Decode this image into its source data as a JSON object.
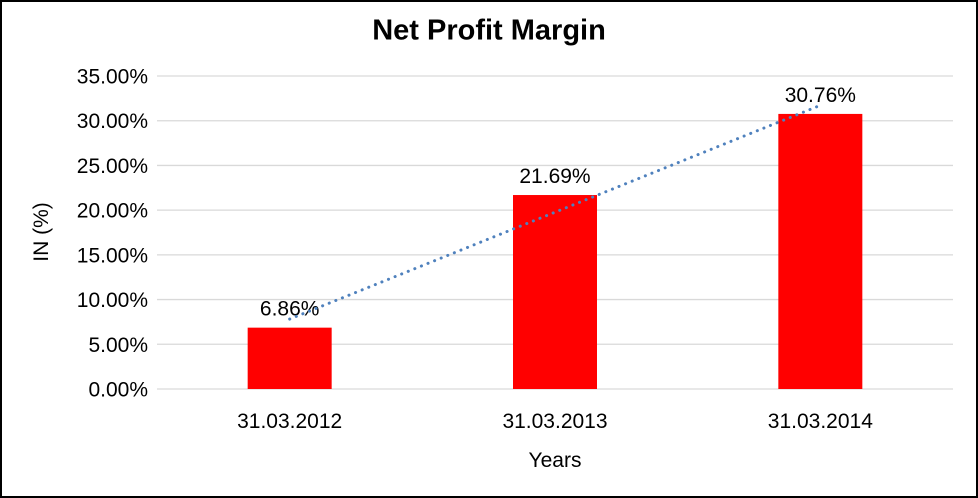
{
  "chart_data": {
    "type": "bar",
    "title": "Net Profit Margin",
    "xlabel": "Years",
    "ylabel": "IN (%)",
    "categories": [
      "31.03.2012",
      "31.03.2013",
      "31.03.2014"
    ],
    "values": [
      6.86,
      21.69,
      30.76
    ],
    "data_labels": [
      "6.86%",
      "21.69%",
      "30.76%"
    ],
    "ylim": [
      0,
      35
    ],
    "y_tick_values": [
      0,
      5,
      10,
      15,
      20,
      25,
      30,
      35
    ],
    "y_tick_labels": [
      "0.00%",
      "5.00%",
      "10.00%",
      "15.00%",
      "20.00%",
      "25.00%",
      "30.00%",
      "35.00%"
    ],
    "grid": true,
    "legend_position": "none",
    "bar_color": "#FF0000",
    "gridline_color": "#D9D9D9",
    "text_color": "#000000",
    "trendline": {
      "type": "linear",
      "style": "dotted",
      "color": "#4F81BD"
    }
  }
}
